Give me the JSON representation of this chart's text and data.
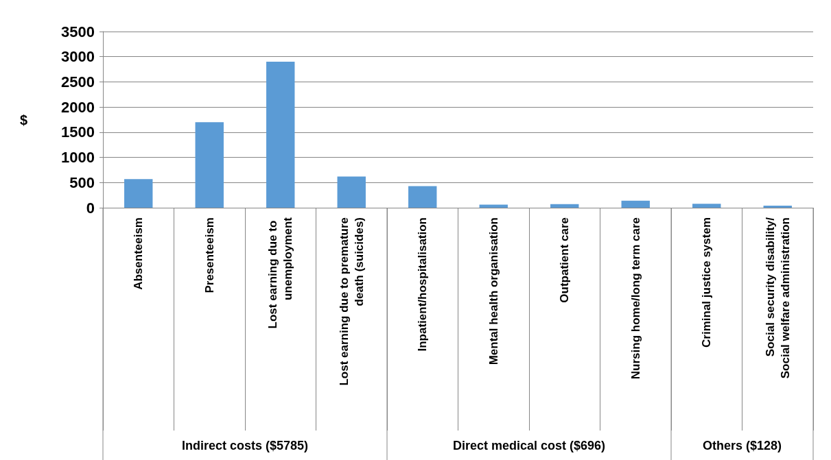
{
  "chart_data": {
    "type": "bar",
    "ylabel": "$",
    "categories": [
      "Absenteeism",
      "Presenteeism",
      "Lost earning due to unemployment",
      "Lost earning due to premature death (suicides)",
      "Inpatient/hospitalisation",
      "Mental health organisation",
      "Outpatient care",
      "Nursing home/long term care",
      "Criminal justice system",
      "Social security disability/Social welfare administration"
    ],
    "values": [
      570,
      1700,
      2900,
      620,
      430,
      60,
      70,
      140,
      80,
      40
    ],
    "color": "#5b9bd5",
    "ylim": [
      0,
      3500
    ],
    "yticks": [
      0,
      500,
      1000,
      1500,
      2000,
      2500,
      3000,
      3500
    ],
    "grid": "y",
    "annotations": [
      "Indirect costs ($5785)",
      "Direct medical cost ($696)",
      "Others ($128)"
    ]
  }
}
